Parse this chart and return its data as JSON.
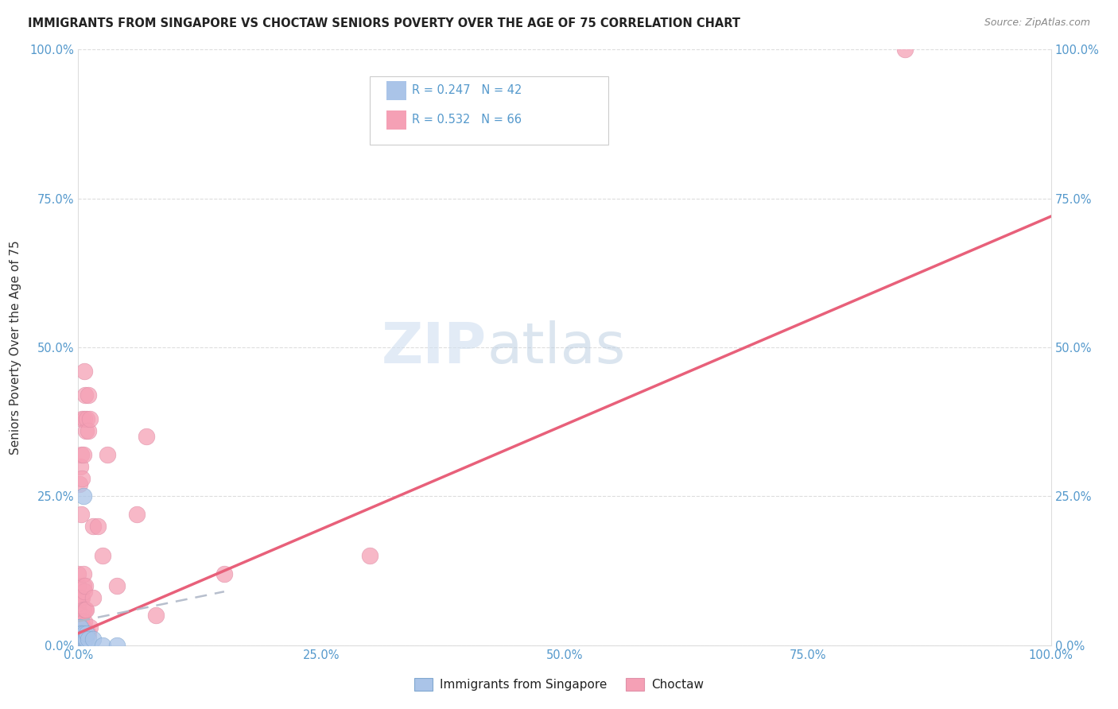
{
  "title": "IMMIGRANTS FROM SINGAPORE VS CHOCTAW SENIORS POVERTY OVER THE AGE OF 75 CORRELATION CHART",
  "source": "Source: ZipAtlas.com",
  "ylabel": "Seniors Poverty Over the Age of 75",
  "xlim": [
    0.0,
    1.0
  ],
  "ylim": [
    0.0,
    1.0
  ],
  "xticks": [
    0.0,
    0.25,
    0.5,
    0.75,
    1.0
  ],
  "yticks": [
    0.0,
    0.25,
    0.5,
    0.75,
    1.0
  ],
  "xtick_labels": [
    "0.0%",
    "25.0%",
    "50.0%",
    "75.0%",
    "100.0%"
  ],
  "ytick_labels": [
    "0.0%",
    "25.0%",
    "50.0%",
    "75.0%",
    "100.0%"
  ],
  "color_blue": "#aac4e8",
  "color_pink": "#f5a0b5",
  "line_blue_color": "#8ab0d8",
  "line_pink_color": "#e8607a",
  "watermark_zip": "ZIP",
  "watermark_atlas": "atlas",
  "singapore_R": 0.247,
  "singapore_N": 42,
  "choctaw_R": 0.532,
  "choctaw_N": 66,
  "choctaw_trend_x": [
    0.0,
    1.0
  ],
  "choctaw_trend_y": [
    0.02,
    0.72
  ],
  "singapore_trend_x": [
    0.0,
    0.15
  ],
  "singapore_trend_y": [
    0.04,
    0.09
  ],
  "singapore_points": [
    [
      0.0,
      0.0
    ],
    [
      0.0,
      0.0
    ],
    [
      0.0,
      0.0
    ],
    [
      0.0,
      0.0
    ],
    [
      0.0,
      0.0
    ],
    [
      0.0,
      0.0
    ],
    [
      0.0,
      0.0
    ],
    [
      0.0,
      0.0
    ],
    [
      0.0,
      0.0
    ],
    [
      0.0,
      0.0
    ],
    [
      0.0,
      0.0
    ],
    [
      0.0,
      0.0
    ],
    [
      0.0,
      0.0
    ],
    [
      0.0,
      0.0
    ],
    [
      0.0,
      0.0
    ],
    [
      0.0,
      0.01
    ],
    [
      0.0,
      0.01
    ],
    [
      0.0,
      0.02
    ],
    [
      0.0,
      0.02
    ],
    [
      0.0,
      0.02
    ],
    [
      0.001,
      0.01
    ],
    [
      0.001,
      0.02
    ],
    [
      0.001,
      0.02
    ],
    [
      0.001,
      0.03
    ],
    [
      0.002,
      0.01
    ],
    [
      0.002,
      0.02
    ],
    [
      0.002,
      0.03
    ],
    [
      0.003,
      0.01
    ],
    [
      0.003,
      0.02
    ],
    [
      0.004,
      0.01
    ],
    [
      0.004,
      0.02
    ],
    [
      0.005,
      0.01
    ],
    [
      0.005,
      0.25
    ],
    [
      0.006,
      0.01
    ],
    [
      0.006,
      0.02
    ],
    [
      0.007,
      0.01
    ],
    [
      0.008,
      0.01
    ],
    [
      0.009,
      0.02
    ],
    [
      0.01,
      0.01
    ],
    [
      0.015,
      0.01
    ],
    [
      0.025,
      0.0
    ],
    [
      0.04,
      0.0
    ]
  ],
  "choctaw_points": [
    [
      0.0,
      0.01
    ],
    [
      0.0,
      0.02
    ],
    [
      0.0,
      0.03
    ],
    [
      0.0,
      0.04
    ],
    [
      0.0,
      0.05
    ],
    [
      0.0,
      0.06
    ],
    [
      0.0,
      0.07
    ],
    [
      0.0,
      0.08
    ],
    [
      0.0,
      0.1
    ],
    [
      0.0,
      0.12
    ],
    [
      0.001,
      0.01
    ],
    [
      0.001,
      0.03
    ],
    [
      0.001,
      0.05
    ],
    [
      0.001,
      0.08
    ],
    [
      0.001,
      0.27
    ],
    [
      0.002,
      0.01
    ],
    [
      0.002,
      0.03
    ],
    [
      0.002,
      0.05
    ],
    [
      0.002,
      0.08
    ],
    [
      0.002,
      0.3
    ],
    [
      0.003,
      0.02
    ],
    [
      0.003,
      0.04
    ],
    [
      0.003,
      0.08
    ],
    [
      0.003,
      0.22
    ],
    [
      0.003,
      0.32
    ],
    [
      0.004,
      0.02
    ],
    [
      0.004,
      0.05
    ],
    [
      0.004,
      0.08
    ],
    [
      0.004,
      0.28
    ],
    [
      0.004,
      0.38
    ],
    [
      0.005,
      0.03
    ],
    [
      0.005,
      0.06
    ],
    [
      0.005,
      0.1
    ],
    [
      0.005,
      0.12
    ],
    [
      0.005,
      0.32
    ],
    [
      0.006,
      0.02
    ],
    [
      0.006,
      0.04
    ],
    [
      0.006,
      0.09
    ],
    [
      0.006,
      0.38
    ],
    [
      0.006,
      0.46
    ],
    [
      0.007,
      0.02
    ],
    [
      0.007,
      0.06
    ],
    [
      0.007,
      0.1
    ],
    [
      0.007,
      0.42
    ],
    [
      0.008,
      0.02
    ],
    [
      0.008,
      0.06
    ],
    [
      0.008,
      0.36
    ],
    [
      0.009,
      0.02
    ],
    [
      0.009,
      0.38
    ],
    [
      0.01,
      0.02
    ],
    [
      0.01,
      0.36
    ],
    [
      0.01,
      0.42
    ],
    [
      0.012,
      0.03
    ],
    [
      0.012,
      0.38
    ],
    [
      0.015,
      0.2
    ],
    [
      0.015,
      0.08
    ],
    [
      0.02,
      0.2
    ],
    [
      0.025,
      0.15
    ],
    [
      0.03,
      0.32
    ],
    [
      0.04,
      0.1
    ],
    [
      0.06,
      0.22
    ],
    [
      0.07,
      0.35
    ],
    [
      0.08,
      0.05
    ],
    [
      0.15,
      0.12
    ],
    [
      0.3,
      0.15
    ],
    [
      0.85,
      1.0
    ]
  ]
}
